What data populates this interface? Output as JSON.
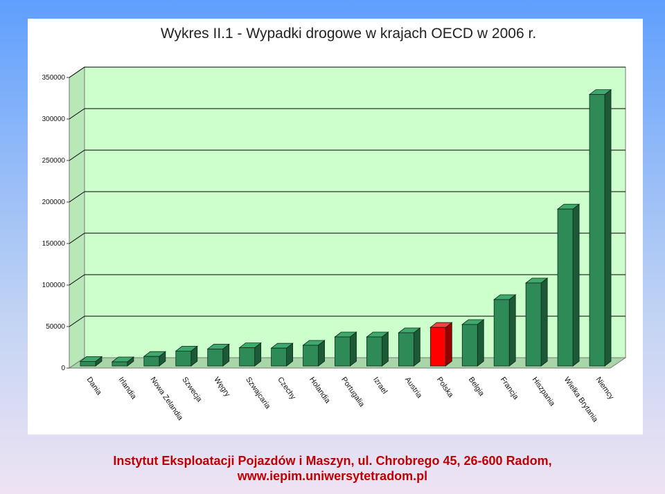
{
  "chart_data": {
    "type": "bar",
    "title": "Wykres II.1 - Wypadki drogowe w krajach OECD w 2006 r.",
    "categories": [
      "Dania",
      "Irlandia",
      "Nowa Zelandia",
      "Szwecja",
      "Węgry",
      "Szwajcaria",
      "Czechy",
      "Holandia",
      "Portugalia",
      "Izrael",
      "Austria",
      "Polska",
      "Belgia",
      "Francja",
      "Hiszpania",
      "Wielka Brytania",
      "Niemcy"
    ],
    "values": [
      5500,
      5000,
      11500,
      18000,
      20500,
      22000,
      21500,
      25000,
      35000,
      35000,
      40000,
      46500,
      50000,
      80000,
      100000,
      189000,
      327000
    ],
    "ylim": [
      0,
      350000
    ],
    "yticks": [
      "0",
      "50000",
      "100000",
      "150000",
      "200000",
      "250000",
      "300000",
      "350000"
    ],
    "grid": true,
    "highlight_category": "Polska",
    "colors": {
      "bar_front": "#2e8b57",
      "bar_side": "#1c5a37",
      "bar_top": "#3fa86c",
      "highlight_front": "#ff0000",
      "highlight_side": "#990000",
      "highlight_top": "#ff4040",
      "plot_back": "#ccffcc",
      "plot_side": "#b8e8b8",
      "plot_floor": "#a9d6a9",
      "grid": "#000000"
    }
  },
  "footer": {
    "line1": "Instytut Eksploatacji Pojazdów i Maszyn, ul. Chrobrego 45, 26-600 Radom,",
    "line2": "www.iepim.uniwersytetradom.pl"
  }
}
